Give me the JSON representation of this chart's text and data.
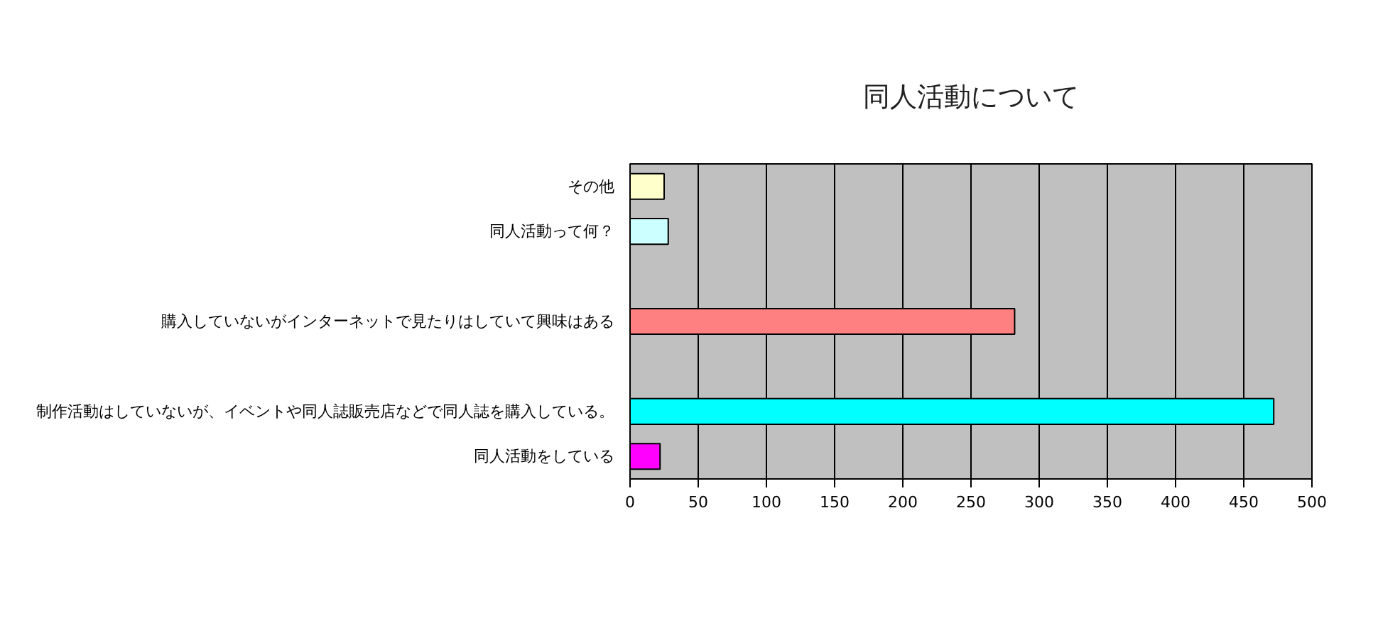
{
  "chart_data": {
    "type": "bar",
    "orientation": "horizontal",
    "title": "同人活動について",
    "categories": [
      "その他",
      "同人活動って何？",
      null,
      "購入していないがインターネットで見たりはしていて興味はある",
      null,
      "制作活動はしていないが、イベントや同人誌販売店などで同人誌を購入している。",
      "同人活動をしている"
    ],
    "values": [
      25,
      28,
      null,
      282,
      null,
      472,
      22
    ],
    "colors": [
      "#ffffcc",
      "#ccffff",
      "#c0c0c0",
      "#ff8080",
      "#c0c0c0",
      "#00ffff",
      "#ff00ff"
    ],
    "xlim": [
      0,
      500
    ],
    "xticks": [
      0,
      50,
      100,
      150,
      200,
      250,
      300,
      350,
      400,
      450,
      500
    ],
    "grid": "x"
  }
}
